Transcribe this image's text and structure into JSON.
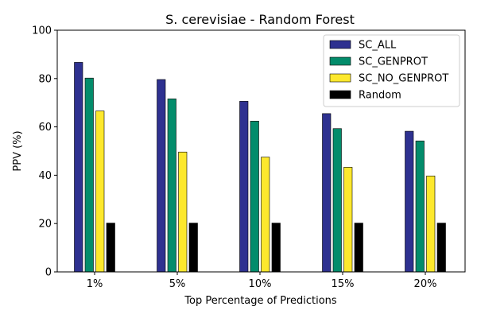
{
  "chart_data": {
    "type": "bar",
    "title": "S. cerevisiae - Random Forest",
    "xlabel": "Top Percentage of Predictions",
    "ylabel": "PPV (%)",
    "categories": [
      "1%",
      "5%",
      "10%",
      "15%",
      "20%"
    ],
    "ylim": [
      0,
      100
    ],
    "yticks": [
      "0",
      "20",
      "40",
      "60",
      "80",
      "100"
    ],
    "grid": false,
    "legend_position": "top-right",
    "series": [
      {
        "name": "SC_ALL",
        "color": "#2e3190",
        "values": [
          86.7,
          79.6,
          70.6,
          65.5,
          58.2
        ]
      },
      {
        "name": "SC_GENPROT",
        "color": "#038c6b",
        "values": [
          80.2,
          71.6,
          62.4,
          59.3,
          54.2
        ]
      },
      {
        "name": "SC_NO_GENPROT",
        "color": "#fde82d",
        "values": [
          66.6,
          49.6,
          47.5,
          43.3,
          39.7
        ]
      },
      {
        "name": "Random",
        "color": "#000000",
        "values": [
          20.2,
          20.2,
          20.2,
          20.2,
          20.2
        ]
      }
    ]
  }
}
